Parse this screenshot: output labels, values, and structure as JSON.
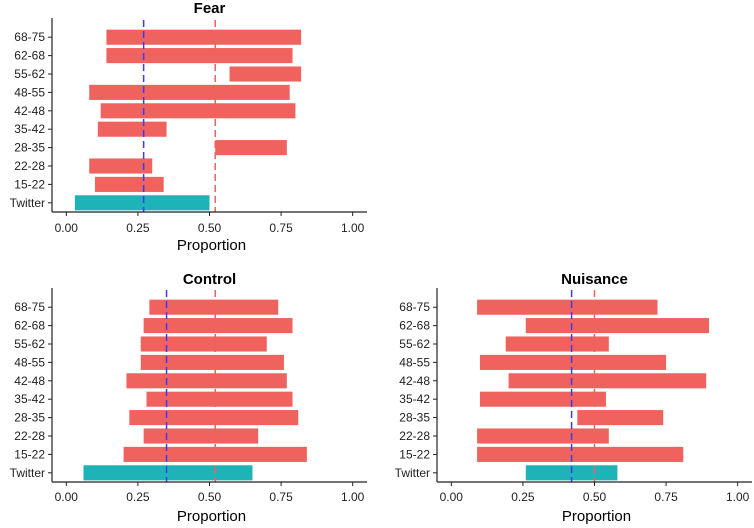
{
  "chart_data": [
    {
      "type": "bar",
      "subtype": "floating-range-horizontal",
      "title": "Fear",
      "xlabel": "Proportion",
      "ylabel": "",
      "xlim": [
        -0.05,
        1.05
      ],
      "xticks": [
        0.0,
        0.25,
        0.5,
        0.75,
        1.0
      ],
      "xtick_labels": [
        "0.00",
        "0.25",
        "0.50",
        "0.75",
        "1.00"
      ],
      "categories": [
        "68-75",
        "62-68",
        "55-62",
        "48-55",
        "42-48",
        "35-42",
        "28-35",
        "22-28",
        "15-22",
        "Twitter"
      ],
      "ranges": [
        [
          0.14,
          0.82
        ],
        [
          0.14,
          0.79
        ],
        [
          0.57,
          0.82
        ],
        [
          0.08,
          0.78
        ],
        [
          0.12,
          0.8
        ],
        [
          0.11,
          0.35
        ],
        [
          0.52,
          0.77
        ],
        [
          0.08,
          0.3
        ],
        [
          0.1,
          0.34
        ],
        [
          0.03,
          0.5
        ]
      ],
      "bar_colors": {
        "age_group": "#f0625e",
        "twitter": "#1eb3b6"
      },
      "reference_lines": [
        {
          "value": 0.27,
          "color": "#3b3bf0",
          "style": "dashed"
        },
        {
          "value": 0.52,
          "color": "#f0625e",
          "style": "dashed"
        }
      ]
    },
    {
      "type": "bar",
      "subtype": "floating-range-horizontal",
      "title": "Control",
      "xlabel": "Proportion",
      "ylabel": "",
      "xlim": [
        -0.05,
        1.05
      ],
      "xticks": [
        0.0,
        0.25,
        0.5,
        0.75,
        1.0
      ],
      "xtick_labels": [
        "0.00",
        "0.25",
        "0.50",
        "0.75",
        "1.00"
      ],
      "categories": [
        "68-75",
        "62-68",
        "55-62",
        "48-55",
        "42-48",
        "35-42",
        "28-35",
        "22-28",
        "15-22",
        "Twitter"
      ],
      "ranges": [
        [
          0.29,
          0.74
        ],
        [
          0.27,
          0.79
        ],
        [
          0.26,
          0.7
        ],
        [
          0.26,
          0.76
        ],
        [
          0.21,
          0.77
        ],
        [
          0.28,
          0.79
        ],
        [
          0.22,
          0.81
        ],
        [
          0.27,
          0.67
        ],
        [
          0.2,
          0.84
        ],
        [
          0.06,
          0.65
        ]
      ],
      "bar_colors": {
        "age_group": "#f0625e",
        "twitter": "#1eb3b6"
      },
      "reference_lines": [
        {
          "value": 0.35,
          "color": "#3b3bf0",
          "style": "dashed"
        },
        {
          "value": 0.52,
          "color": "#f0625e",
          "style": "dashed"
        }
      ]
    },
    {
      "type": "bar",
      "subtype": "floating-range-horizontal",
      "title": "Nuisance",
      "xlabel": "Proportion",
      "ylabel": "",
      "xlim": [
        -0.05,
        1.05
      ],
      "xticks": [
        0.0,
        0.25,
        0.5,
        0.75,
        1.0
      ],
      "xtick_labels": [
        "0.00",
        "0.25",
        "0.50",
        "0.75",
        "1.00"
      ],
      "categories": [
        "68-75",
        "62-68",
        "55-62",
        "48-55",
        "42-48",
        "35-42",
        "28-35",
        "22-28",
        "15-22",
        "Twitter"
      ],
      "ranges": [
        [
          0.09,
          0.72
        ],
        [
          0.26,
          0.9
        ],
        [
          0.19,
          0.55
        ],
        [
          0.1,
          0.75
        ],
        [
          0.2,
          0.89
        ],
        [
          0.1,
          0.54
        ],
        [
          0.44,
          0.74
        ],
        [
          0.09,
          0.55
        ],
        [
          0.09,
          0.81
        ],
        [
          0.26,
          0.58
        ]
      ],
      "bar_colors": {
        "age_group": "#f0625e",
        "twitter": "#1eb3b6"
      },
      "reference_lines": [
        {
          "value": 0.42,
          "color": "#3b3bf0",
          "style": "dashed"
        },
        {
          "value": 0.5,
          "color": "#f0625e",
          "style": "dashed"
        }
      ]
    }
  ]
}
